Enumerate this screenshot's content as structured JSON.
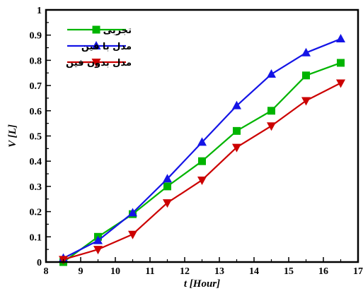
{
  "chart_data": {
    "type": "line",
    "xlabel": "t [Hour]",
    "ylabel": "V [L]",
    "xlim": [
      8,
      17
    ],
    "ylim": [
      0,
      1
    ],
    "x_ticks": [
      "8",
      "9",
      "10",
      "11",
      "12",
      "13",
      "14",
      "15",
      "16",
      "17"
    ],
    "y_ticks": [
      "0",
      "0.1",
      "0.2",
      "0.3",
      "0.4",
      "0.5",
      "0.6",
      "0.7",
      "0.8",
      "0.9",
      "1"
    ],
    "grid": false,
    "legend_position": "top-left",
    "series": [
      {
        "name": "تجربی",
        "color": "#00b400",
        "marker": "square",
        "x": [
          8.5,
          9.5,
          10.5,
          11.5,
          12.5,
          13.5,
          14.5,
          15.5,
          16.5
        ],
        "y": [
          0.0,
          0.1,
          0.19,
          0.3,
          0.4,
          0.52,
          0.6,
          0.74,
          0.79
        ]
      },
      {
        "name": "مدل با فین",
        "color": "#1414e6",
        "marker": "triangle-up",
        "x": [
          8.5,
          9.5,
          10.5,
          11.5,
          12.5,
          13.5,
          14.5,
          15.5,
          16.5
        ],
        "y": [
          0.015,
          0.085,
          0.195,
          0.33,
          0.475,
          0.62,
          0.745,
          0.83,
          0.885
        ]
      },
      {
        "name": "مدل بدون فین",
        "color": "#cc0000",
        "marker": "triangle-down",
        "x": [
          8.5,
          9.5,
          10.5,
          11.5,
          12.5,
          13.5,
          14.5,
          15.5,
          16.5
        ],
        "y": [
          0.01,
          0.05,
          0.11,
          0.235,
          0.325,
          0.455,
          0.54,
          0.64,
          0.71
        ]
      }
    ]
  }
}
